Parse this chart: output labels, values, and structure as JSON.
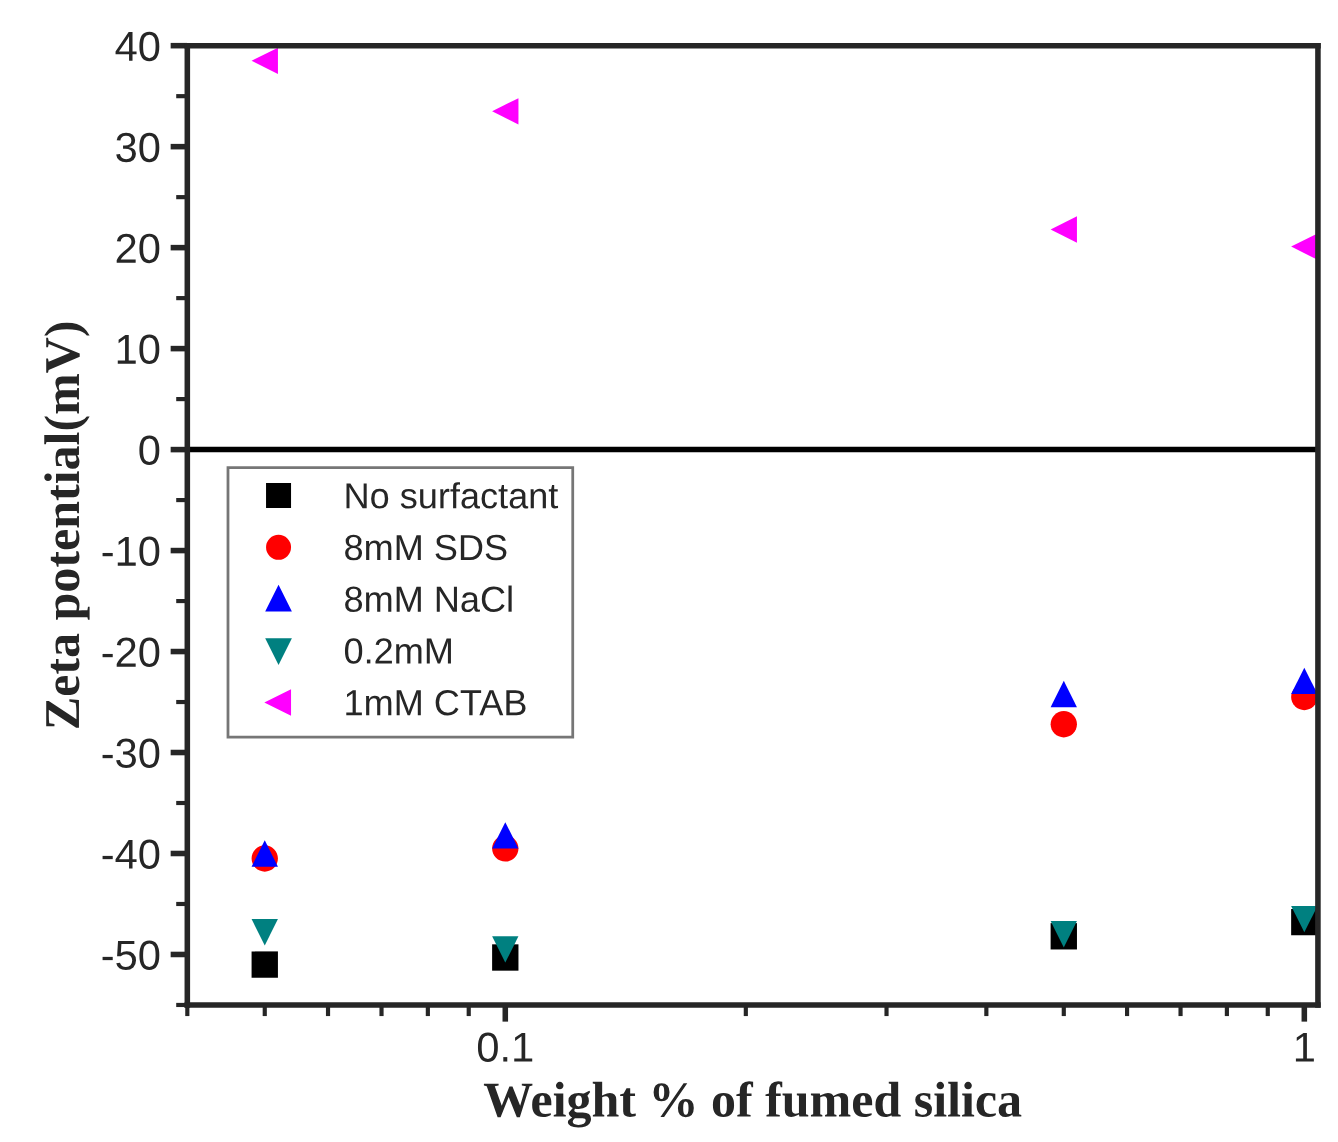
{
  "chart_data": {
    "type": "scatter",
    "xlabel": "Weight % of fumed silica",
    "ylabel": "Zeta potential(mV)",
    "log": "x",
    "x": [
      0.05,
      0.1,
      0.5,
      1
    ],
    "xlim": [
      0.04,
      1.04
    ],
    "xticks": [
      0.1,
      1
    ],
    "ylim": [
      -55,
      40
    ],
    "yticks": [
      -50,
      -40,
      -30,
      -20,
      -10,
      0,
      10,
      20,
      30,
      40
    ],
    "grid": false,
    "legend": "left",
    "ref_lines": [
      {
        "axis": "y",
        "value": 0,
        "color": "#000000"
      }
    ],
    "series": [
      {
        "name": "No surfactant",
        "color": "#000000",
        "marker": "square",
        "values": [
          -51,
          -50.3,
          -48.2,
          -46.8
        ]
      },
      {
        "name": "8mM SDS",
        "color": "#ff0000",
        "marker": "circle",
        "values": [
          -40.5,
          -39.5,
          -27.2,
          -24.5
        ]
      },
      {
        "name": "8mM NaCl",
        "color": "#0000ff",
        "marker": "triangle",
        "values": [
          -40,
          -38.2,
          -24.2,
          -22.9
        ]
      },
      {
        "name": "0.2mM",
        "color": "#008080",
        "marker": "triangle_down",
        "values": [
          -47.8,
          -49.5,
          -48,
          -46.5
        ]
      },
      {
        "name": "1mM CTAB",
        "color": "#ff00ff",
        "marker": "triangle_left",
        "values": [
          38.5,
          33.5,
          21.8,
          20.1
        ]
      }
    ]
  }
}
